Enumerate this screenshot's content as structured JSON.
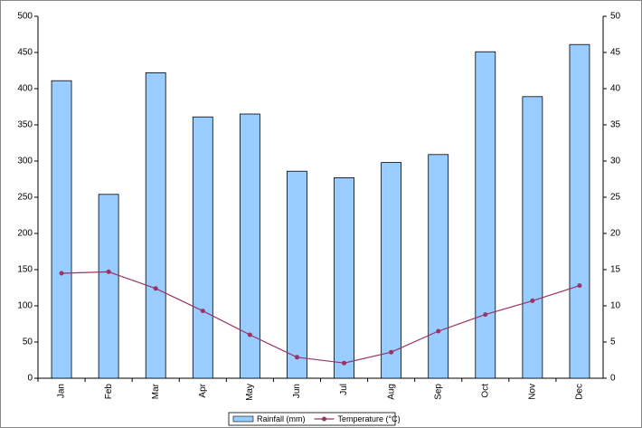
{
  "chart_data": {
    "type": "bar",
    "categories": [
      "Jan",
      "Feb",
      "Mar",
      "Apr",
      "May",
      "Jun",
      "Jul",
      "Aug",
      "Sep",
      "Oct",
      "Nov",
      "Dec"
    ],
    "series": [
      {
        "name": "Rainfall (mm)",
        "type": "bar",
        "color": "#99ccff",
        "values": [
          411,
          254,
          422,
          361,
          365,
          286,
          277,
          298,
          309,
          451,
          389,
          461
        ]
      },
      {
        "name": "Temperature (°C)",
        "type": "line",
        "axis": "y2",
        "color": "#993366",
        "values": [
          14.5,
          14.7,
          12.4,
          9.3,
          6.0,
          2.9,
          2.1,
          3.6,
          6.5,
          8.8,
          10.7,
          12.8
        ]
      }
    ],
    "ylim": [
      0,
      500
    ],
    "yticks": [
      0,
      50,
      100,
      150,
      200,
      250,
      300,
      350,
      400,
      450,
      500
    ],
    "y2lim": [
      0,
      50
    ],
    "y2ticks": [
      0,
      5,
      10,
      15,
      20,
      25,
      30,
      35,
      40,
      45,
      50
    ],
    "legend": "bottom"
  }
}
